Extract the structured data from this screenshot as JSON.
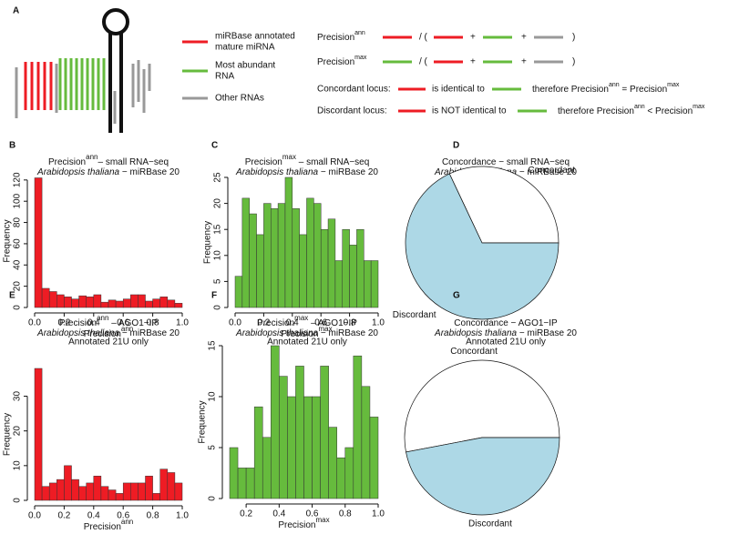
{
  "diagram": {
    "panel": "A",
    "legend": [
      [
        "miRBase annotated",
        "mature miRNA"
      ],
      [
        "Most abundant",
        "RNA"
      ],
      [
        "Other RNAs"
      ]
    ],
    "formulas": [
      [
        "Precision",
        "ann",
        "/  (",
        "+",
        "+",
        ")"
      ],
      [
        "Precision",
        "max",
        "/  (",
        "+",
        "+",
        ")"
      ],
      [
        "Concordant locus:",
        "is identical to",
        "therefore Precision",
        "ann",
        " = Precision",
        "max"
      ],
      [
        "Discordant locus:",
        "is NOT identical to",
        "therefore Precision",
        "ann",
        " < Precision",
        "max"
      ]
    ]
  },
  "chart_data": [
    {
      "type": "histogram",
      "panel": "B",
      "title": {
        "text": "Precision",
        "sup": "ann",
        "rest": "– small RNA−seq"
      },
      "subtitle": {
        "italic": "Arabidopsis thaliana",
        "rest": " − miRBase 20"
      },
      "xlabel": {
        "text": "Precision",
        "sup": "ann"
      },
      "ylabel": "Frequency",
      "color": "#ee1c24",
      "bins": [
        0,
        0.05,
        0.1,
        0.15,
        0.2,
        0.25,
        0.3,
        0.35,
        0.4,
        0.45,
        0.5,
        0.55,
        0.6,
        0.65,
        0.7,
        0.75,
        0.8,
        0.85,
        0.9,
        0.95,
        1
      ],
      "values": [
        122,
        18,
        15,
        12,
        10,
        8,
        11,
        10,
        12,
        5,
        7,
        6,
        8,
        12,
        12,
        6,
        8,
        10,
        7,
        4
      ],
      "xlim": [
        0,
        1
      ],
      "ylim": [
        0,
        125
      ],
      "xticks": [
        {
          "value": 0,
          "label": "0.0"
        },
        0.2,
        0.4,
        0.6,
        0.8,
        {
          "value": 1,
          "label": "1.0"
        }
      ],
      "yticks": [
        0,
        20,
        40,
        60,
        80,
        100,
        120
      ]
    },
    {
      "type": "histogram",
      "panel": "C",
      "title": {
        "text": "Precision",
        "sup": "max",
        "rest": " – small RNA−seq"
      },
      "subtitle": {
        "italic": "Arabidopsis thaliana",
        "rest": " − miRBase 20"
      },
      "xlabel": {
        "text": "Precision",
        "sup": "max"
      },
      "ylabel": "Frequency",
      "color": "#66bb3d",
      "bins": [
        0,
        0.05,
        0.1,
        0.15,
        0.2,
        0.25,
        0.3,
        0.35,
        0.4,
        0.45,
        0.5,
        0.55,
        0.6,
        0.65,
        0.7,
        0.75,
        0.8,
        0.85,
        0.9,
        0.95,
        1
      ],
      "values": [
        6,
        21,
        18,
        14,
        20,
        19,
        20,
        25,
        19,
        14,
        21,
        20,
        15,
        17,
        9,
        15,
        12,
        15,
        9,
        9
      ],
      "xlim": [
        0,
        1
      ],
      "ylim": [
        0,
        25
      ],
      "xticks": [
        {
          "value": 0,
          "label": "0.0"
        },
        0.2,
        0.4,
        0.6,
        0.8,
        {
          "value": 1,
          "label": "1.0"
        }
      ],
      "yticks": [
        0,
        5,
        10,
        15,
        20,
        25
      ]
    },
    {
      "type": "pie",
      "panel": "D",
      "title": {
        "text": "Concordance − small RNA−seq"
      },
      "subtitle": {
        "italic": "Arabidopsis thaliana",
        "rest": " − miRBase 20"
      },
      "categories": [
        "Concordant",
        "Discordant"
      ],
      "values": [
        32,
        68
      ],
      "colors": [
        "#ffffff",
        "#add8e6"
      ]
    },
    {
      "type": "histogram",
      "panel": "E",
      "title": {
        "text": "Precision",
        "sup": "ann",
        "rest": " – AGO1−IP"
      },
      "subtitle": {
        "italic": "Arabidopsis thaliana",
        "rest": " − miRBase 20"
      },
      "note": "Annotated 21U only",
      "xlabel": {
        "text": "Precision",
        "sup": "ann"
      },
      "ylabel": "Frequency",
      "color": "#ee1c24",
      "bins": [
        0,
        0.05,
        0.1,
        0.15,
        0.2,
        0.25,
        0.3,
        0.35,
        0.4,
        0.45,
        0.5,
        0.55,
        0.6,
        0.65,
        0.7,
        0.75,
        0.8,
        0.85,
        0.9,
        0.95,
        1
      ],
      "values": [
        38,
        4,
        5,
        6,
        10,
        6,
        4,
        5,
        7,
        4,
        3,
        2,
        5,
        5,
        5,
        7,
        2,
        9,
        8,
        5
      ],
      "xlim": [
        0,
        1
      ],
      "ylim": [
        0,
        38
      ],
      "xticks": [
        {
          "value": 0,
          "label": "0.0"
        },
        0.2,
        0.4,
        0.6,
        0.8,
        {
          "value": 1,
          "label": "1.0"
        }
      ],
      "yticks": [
        0,
        10,
        20,
        30
      ]
    },
    {
      "type": "histogram",
      "panel": "F",
      "title": {
        "text": "Precision",
        "sup": "max",
        "rest": " – AGO1−IP"
      },
      "subtitle": {
        "italic": "Arabidopsis thaliana",
        "rest": " − miRBase 20"
      },
      "note": "Annotated 21U only",
      "xlabel": {
        "text": "Precision",
        "sup": "max"
      },
      "ylabel": "Frequency",
      "color": "#66bb3d",
      "bins": [
        0.1,
        0.15,
        0.2,
        0.25,
        0.3,
        0.35,
        0.4,
        0.45,
        0.5,
        0.55,
        0.6,
        0.65,
        0.7,
        0.75,
        0.8,
        0.85,
        0.9,
        0.95,
        1
      ],
      "values": [
        5,
        3,
        3,
        9,
        6,
        15,
        12,
        10,
        13,
        10,
        10,
        13,
        7,
        4,
        5,
        14,
        11,
        8
      ],
      "xlim": [
        0.1,
        1
      ],
      "ylim": [
        0,
        15
      ],
      "xticks": [
        0.2,
        0.4,
        0.6,
        0.8,
        {
          "value": 1,
          "label": "1.0"
        }
      ],
      "yticks": [
        0,
        5,
        10,
        15
      ]
    },
    {
      "type": "pie",
      "panel": "G",
      "title": {
        "text": "Concordance − AGO1−IP"
      },
      "subtitle": {
        "italic": "Arabidopsis thaliana",
        "rest": " − miRBase 20"
      },
      "note": "Annotated 21U only",
      "categories": [
        "Concordant",
        "Discordant"
      ],
      "values": [
        53,
        47
      ],
      "colors": [
        "#ffffff",
        "#add8e6"
      ]
    }
  ]
}
